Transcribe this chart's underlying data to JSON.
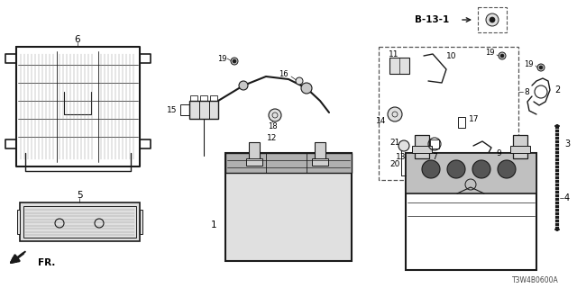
{
  "bg_color": "#ffffff",
  "line_color": "#1a1a1a",
  "gray_fill": "#c8c8c8",
  "light_gray": "#e0e0e0",
  "part_code": "T3W4B0600A",
  "figsize": [
    6.4,
    3.2
  ],
  "dpi": 100
}
